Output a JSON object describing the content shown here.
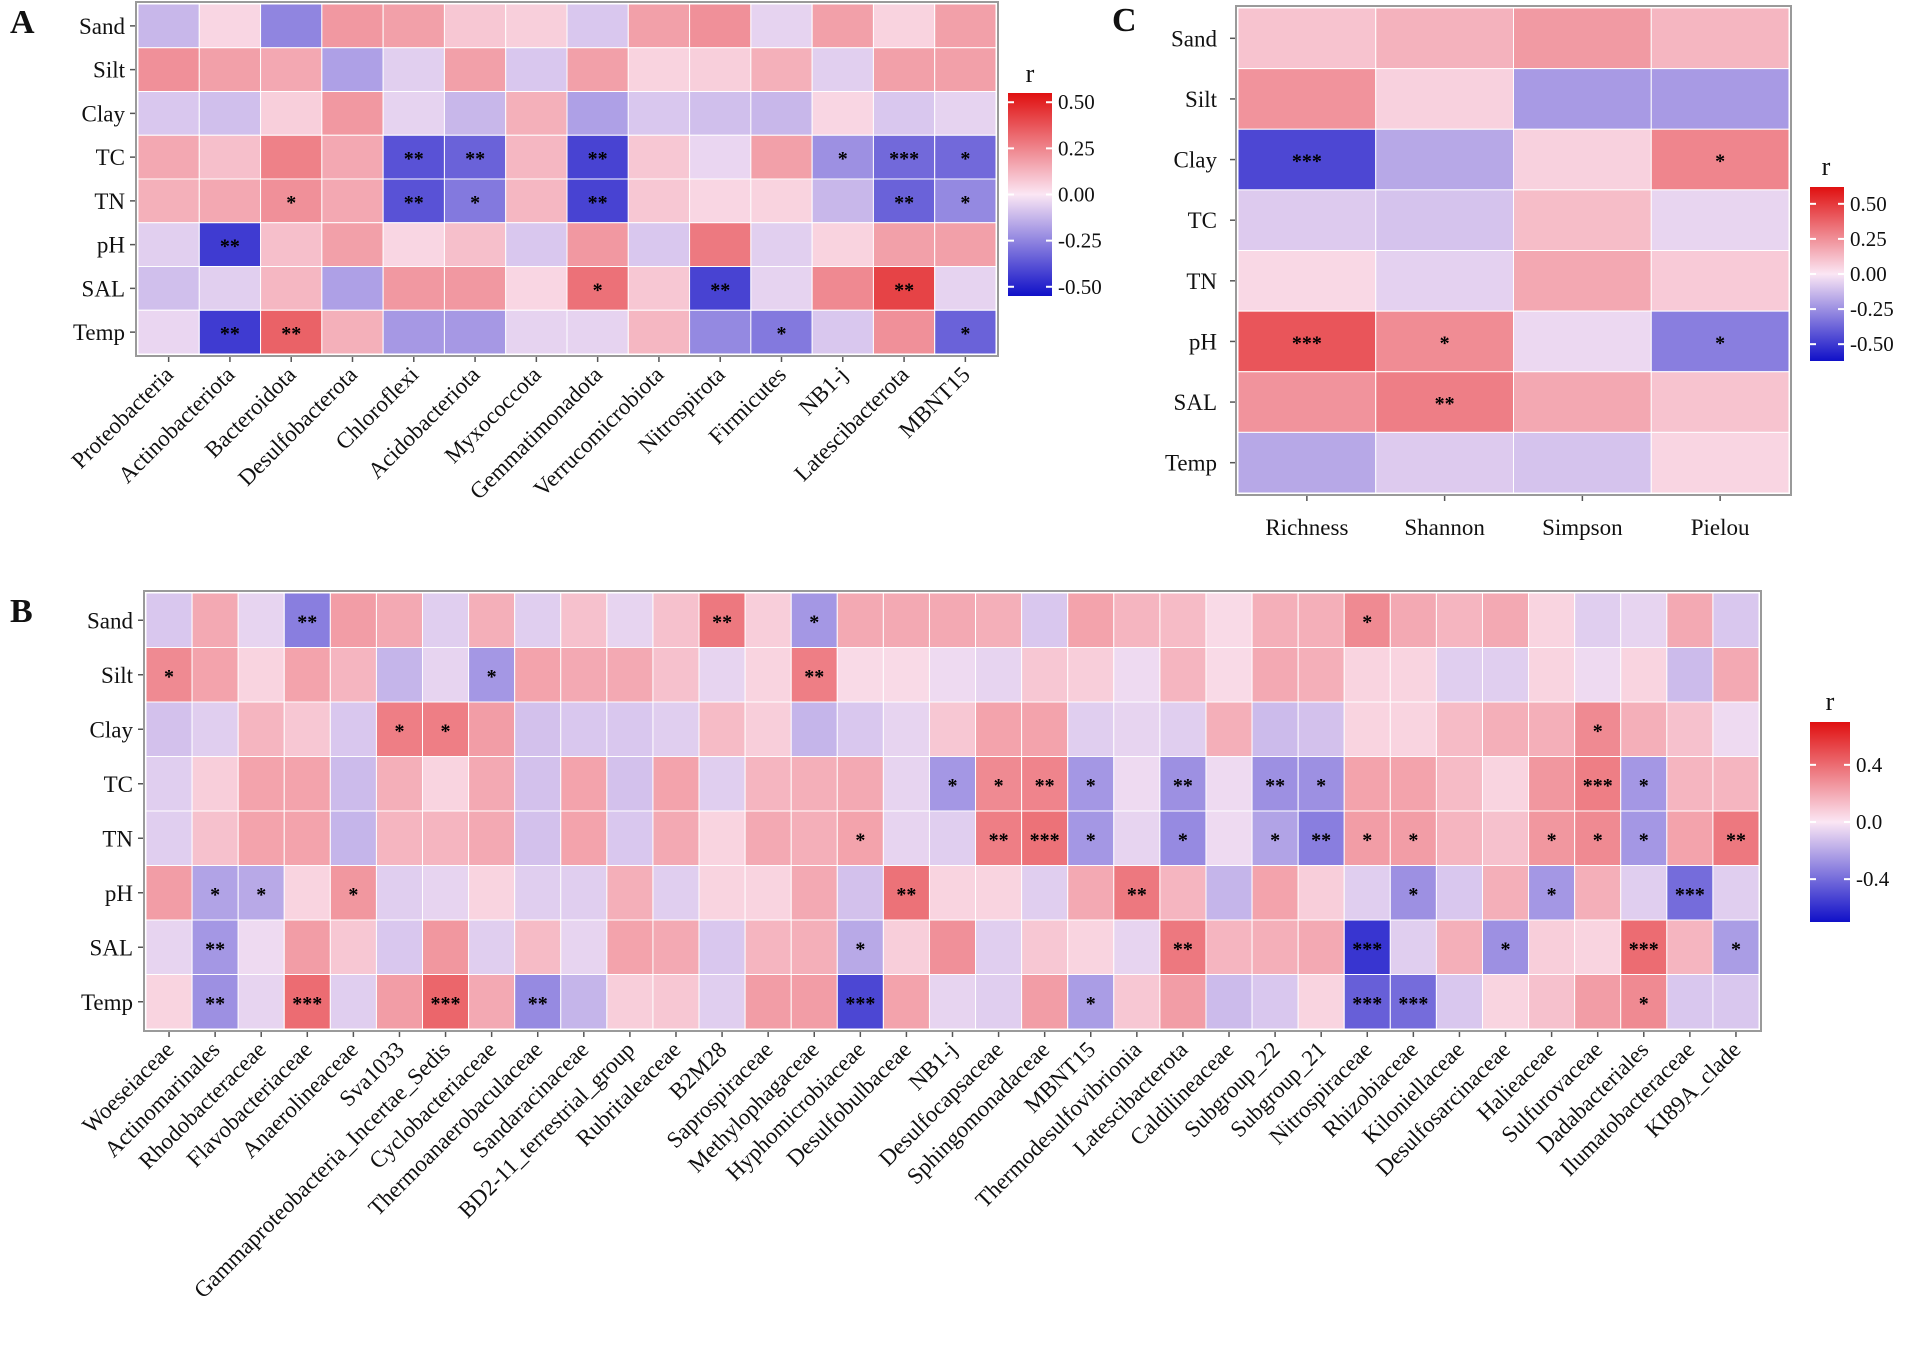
{
  "palette": {
    "low": "#1010c8",
    "mid": "#fbe6f4",
    "high": "#e01010",
    "border": "#9a9a9a"
  },
  "chart_data": [
    {
      "panel": "A",
      "type": "heatmap",
      "title": "",
      "legend_title": "r",
      "legend_ticks": [
        "0.50",
        "0.25",
        "0.00",
        "-0.25",
        "-0.50"
      ],
      "legend_tick_values": [
        0.5,
        0.25,
        0,
        -0.25,
        -0.5
      ],
      "color_range": [
        -0.55,
        0.55
      ],
      "rows": [
        "Sand",
        "Silt",
        "Clay",
        "TC",
        "TN",
        "pH",
        "SAL",
        "Temp"
      ],
      "columns": [
        "Proteobacteria",
        "Actinobacteriota",
        "Bacteroidota",
        "Desulfobacterota",
        "Chloroflexi",
        "Acidobacteriota",
        "Myxococcota",
        "Gemmatimonadota",
        "Verrucomicrobiota",
        "Nitrospirota",
        "Firmicutes",
        "NB1-j",
        "Latescibacterota",
        "MBNT15"
      ],
      "values": [
        [
          -0.12,
          0.04,
          -0.25,
          0.2,
          0.18,
          0.08,
          0.06,
          -0.08,
          0.18,
          0.22,
          -0.05,
          0.18,
          0.05,
          0.18
        ],
        [
          0.22,
          0.18,
          0.16,
          -0.18,
          -0.06,
          0.18,
          -0.08,
          0.18,
          0.05,
          0.06,
          0.14,
          -0.06,
          0.18,
          0.18
        ],
        [
          -0.08,
          -0.1,
          0.06,
          0.2,
          -0.05,
          -0.12,
          0.14,
          -0.18,
          -0.08,
          -0.1,
          -0.12,
          0.04,
          -0.08,
          -0.05
        ],
        [
          0.16,
          0.1,
          0.26,
          0.16,
          -0.38,
          -0.34,
          0.12,
          -0.42,
          0.08,
          -0.04,
          0.18,
          -0.22,
          -0.32,
          -0.32
        ],
        [
          0.14,
          0.16,
          0.22,
          0.16,
          -0.38,
          -0.28,
          0.12,
          -0.42,
          0.08,
          0.04,
          0.05,
          -0.12,
          -0.34,
          -0.24
        ],
        [
          -0.06,
          -0.44,
          0.1,
          0.18,
          0.04,
          0.1,
          -0.08,
          0.2,
          -0.08,
          0.28,
          -0.06,
          0.05,
          0.18,
          0.18
        ],
        [
          -0.1,
          -0.06,
          0.12,
          -0.18,
          0.2,
          0.2,
          0.04,
          0.3,
          0.08,
          -0.42,
          -0.05,
          0.24,
          0.42,
          -0.05
        ],
        [
          -0.04,
          -0.44,
          0.34,
          0.14,
          -0.2,
          -0.2,
          -0.05,
          -0.05,
          0.12,
          -0.24,
          -0.28,
          -0.08,
          0.22,
          -0.34
        ]
      ],
      "stars": [
        [
          "",
          "",
          "",
          "",
          "",
          "",
          "",
          "",
          "",
          "",
          "",
          "",
          "",
          ""
        ],
        [
          "",
          "",
          "",
          "",
          "",
          "",
          "",
          "",
          "",
          "",
          "",
          "",
          "",
          ""
        ],
        [
          "",
          "",
          "",
          "",
          "",
          "",
          "",
          "",
          "",
          "",
          "",
          "",
          "",
          ""
        ],
        [
          "",
          "",
          "",
          "",
          "**",
          "**",
          "",
          "**",
          "",
          "",
          "",
          "*",
          "***",
          "*"
        ],
        [
          "",
          "",
          "*",
          "",
          "**",
          "*",
          "",
          "**",
          "",
          "",
          "",
          "",
          "**",
          "*"
        ],
        [
          "",
          "**",
          "",
          "",
          "",
          "",
          "",
          "",
          "",
          "",
          "",
          "",
          "",
          ""
        ],
        [
          "",
          "",
          "",
          "",
          "",
          "",
          "",
          "*",
          "",
          "**",
          "",
          "",
          "**",
          ""
        ],
        [
          "",
          "**",
          "**",
          "",
          "",
          "",
          "",
          "",
          "",
          "",
          "*",
          "",
          "",
          "*"
        ]
      ]
    },
    {
      "panel": "C",
      "type": "heatmap",
      "title": "",
      "legend_title": "r",
      "legend_ticks": [
        "0.50",
        "0.25",
        "0.00",
        "-0.25",
        "-0.50"
      ],
      "legend_tick_values": [
        0.5,
        0.25,
        0,
        -0.25,
        -0.5
      ],
      "color_range": [
        -0.62,
        0.62
      ],
      "rows": [
        "Sand",
        "Silt",
        "Clay",
        "TC",
        "TN",
        "pH",
        "SAL",
        "Temp"
      ],
      "columns": [
        "Richness",
        "Shannon",
        "Simpson",
        "Pielou"
      ],
      "values": [
        [
          0.1,
          0.15,
          0.22,
          0.14
        ],
        [
          0.24,
          0.06,
          -0.22,
          -0.22
        ],
        [
          -0.46,
          -0.18,
          0.06,
          0.28
        ],
        [
          -0.08,
          -0.1,
          0.12,
          -0.05
        ],
        [
          0.04,
          -0.06,
          0.18,
          0.08
        ],
        [
          0.42,
          0.26,
          -0.04,
          -0.3
        ],
        [
          0.24,
          0.3,
          0.18,
          0.1
        ],
        [
          -0.18,
          -0.08,
          -0.1,
          0.05
        ]
      ],
      "stars": [
        [
          "",
          "",
          "",
          ""
        ],
        [
          "",
          "",
          "",
          ""
        ],
        [
          "***",
          "",
          "",
          "*"
        ],
        [
          "",
          "",
          "",
          ""
        ],
        [
          "",
          "",
          "",
          ""
        ],
        [
          "***",
          "*",
          "",
          "*"
        ],
        [
          "",
          "**",
          "",
          ""
        ],
        [
          "",
          "",
          "",
          ""
        ]
      ]
    },
    {
      "panel": "B",
      "type": "heatmap",
      "title": "",
      "legend_title": "r",
      "legend_ticks": [
        "0.4",
        "0.0",
        "-0.4"
      ],
      "legend_tick_values": [
        0.4,
        0.0,
        -0.4
      ],
      "color_range": [
        -0.7,
        0.7
      ],
      "rows": [
        "Sand",
        "Silt",
        "Clay",
        "TC",
        "TN",
        "pH",
        "SAL",
        "Temp"
      ],
      "columns": [
        "Woeseiaceae",
        "Actinomarinales",
        "Rhodobacteraceae",
        "Flavobacteriaceae",
        "Anaerolineaceae",
        "Sva1033",
        "Gammaproteobacteria_Incertae_Sedis",
        "Cyclobacteriaceae",
        "Thermoanaerobaculaceae",
        "Sandaracinaceae",
        "BD2-11_terrestrial_group",
        "Rubritaleaceae",
        "B2M28",
        "Saprospiraceae",
        "Methylophagaceae",
        "Hyphomicrobiaceae",
        "Desulfobulbaceae",
        "NB1-j",
        "Desulfocapsaceae",
        "Sphingomonadaceae",
        "MBNT15",
        "Thermodesulfovibrionia",
        "Latescibacterota",
        "Caldilineaceae",
        "Subgroup_22",
        "Subgroup_21",
        "Nitrospiraceae",
        "Rhizobiaceae",
        "Kiloniellaceae",
        "Desulfosarcinaceae",
        "Halieaceae",
        "Sulfurovaceae",
        "Dadabacteriales",
        "Ilumatobacteraceae",
        "KI89A_clade"
      ],
      "values": [
        [
          -0.1,
          0.2,
          -0.06,
          -0.34,
          0.24,
          0.2,
          -0.08,
          0.18,
          -0.08,
          0.12,
          -0.06,
          0.12,
          0.36,
          0.08,
          -0.26,
          0.2,
          0.2,
          0.2,
          0.18,
          -0.1,
          0.22,
          0.16,
          0.14,
          0.04,
          0.18,
          0.18,
          0.3,
          0.2,
          0.16,
          0.2,
          0.06,
          -0.08,
          -0.06,
          0.2,
          -0.1
        ],
        [
          0.3,
          0.22,
          0.06,
          0.22,
          0.16,
          -0.16,
          -0.06,
          -0.26,
          0.22,
          0.2,
          0.2,
          0.12,
          -0.06,
          0.06,
          0.34,
          0.04,
          0.04,
          -0.04,
          -0.06,
          0.1,
          0.08,
          -0.04,
          0.16,
          0.04,
          0.2,
          0.18,
          0.06,
          0.06,
          -0.08,
          -0.08,
          0.06,
          -0.04,
          0.06,
          -0.14,
          0.2
        ],
        [
          -0.12,
          -0.08,
          0.16,
          0.1,
          -0.1,
          0.34,
          0.34,
          0.24,
          -0.12,
          -0.1,
          -0.1,
          -0.08,
          0.14,
          0.08,
          -0.16,
          -0.1,
          -0.06,
          0.1,
          0.22,
          0.22,
          -0.08,
          -0.06,
          -0.08,
          0.18,
          -0.14,
          -0.12,
          0.06,
          0.06,
          0.14,
          0.18,
          0.18,
          0.3,
          0.18,
          0.12,
          -0.04
        ],
        [
          -0.08,
          0.08,
          0.22,
          0.22,
          -0.14,
          0.18,
          0.06,
          0.2,
          -0.12,
          0.22,
          -0.12,
          0.22,
          -0.08,
          0.16,
          0.18,
          0.2,
          -0.06,
          -0.26,
          0.3,
          0.32,
          -0.26,
          -0.04,
          -0.28,
          -0.04,
          -0.28,
          -0.28,
          0.22,
          0.22,
          0.14,
          0.06,
          0.26,
          0.34,
          -0.26,
          0.16,
          0.16
        ],
        [
          -0.08,
          0.12,
          0.22,
          0.22,
          -0.16,
          0.16,
          0.16,
          0.2,
          -0.12,
          0.22,
          -0.1,
          0.2,
          0.06,
          0.2,
          0.18,
          0.22,
          -0.06,
          -0.08,
          0.34,
          0.38,
          -0.26,
          -0.06,
          -0.3,
          -0.04,
          -0.22,
          -0.34,
          0.24,
          0.24,
          0.16,
          0.12,
          0.26,
          0.3,
          -0.26,
          0.22,
          0.36
        ],
        [
          0.24,
          -0.22,
          -0.2,
          0.06,
          0.26,
          -0.08,
          -0.06,
          0.06,
          -0.08,
          -0.08,
          0.18,
          -0.08,
          0.06,
          0.06,
          0.2,
          -0.12,
          0.38,
          0.06,
          0.06,
          -0.08,
          0.2,
          0.36,
          0.16,
          -0.16,
          0.22,
          0.08,
          -0.08,
          -0.28,
          -0.1,
          0.18,
          -0.26,
          0.18,
          -0.08,
          -0.4,
          -0.08
        ],
        [
          -0.06,
          -0.26,
          -0.04,
          0.24,
          0.1,
          -0.1,
          0.26,
          -0.08,
          0.14,
          -0.06,
          0.22,
          0.2,
          -0.1,
          0.16,
          0.18,
          -0.2,
          0.08,
          0.28,
          -0.08,
          0.1,
          0.06,
          -0.06,
          0.36,
          0.16,
          0.18,
          0.2,
          -0.58,
          -0.08,
          0.18,
          -0.28,
          0.08,
          0.06,
          0.4,
          0.16,
          -0.24
        ],
        [
          0.06,
          -0.28,
          -0.06,
          0.4,
          -0.08,
          0.24,
          0.42,
          0.2,
          -0.3,
          -0.16,
          0.08,
          0.1,
          -0.08,
          0.24,
          0.24,
          -0.52,
          0.22,
          -0.06,
          -0.08,
          0.24,
          -0.24,
          0.1,
          0.24,
          -0.14,
          -0.1,
          0.06,
          -0.44,
          -0.4,
          -0.1,
          0.06,
          0.12,
          0.24,
          0.3,
          -0.1,
          -0.1
        ]
      ],
      "stars": [
        [
          "",
          "",
          "",
          "**",
          "",
          "",
          "",
          "",
          "",
          "",
          "",
          "",
          "**",
          "",
          "*",
          "",
          "",
          "",
          "",
          "",
          "",
          "",
          "",
          "",
          "",
          "",
          "*",
          "",
          "",
          "",
          "",
          "",
          "",
          "",
          ""
        ],
        [
          "*",
          "",
          "",
          "",
          "",
          "",
          "",
          "*",
          "",
          "",
          "",
          "",
          "",
          "",
          "**",
          "",
          "",
          "",
          "",
          "",
          "",
          "",
          "",
          "",
          "",
          "",
          "",
          "",
          "",
          "",
          "",
          "",
          "",
          "",
          ""
        ],
        [
          "",
          "",
          "",
          "",
          "",
          "*",
          "*",
          "",
          "",
          "",
          "",
          "",
          "",
          "",
          "",
          "",
          "",
          "",
          "",
          "",
          "",
          "",
          "",
          "",
          "",
          "",
          "",
          "",
          "",
          "",
          "",
          "*",
          "",
          "",
          ""
        ],
        [
          "",
          "",
          "",
          "",
          "",
          "",
          "",
          "",
          "",
          "",
          "",
          "",
          "",
          "",
          "",
          "",
          "",
          "*",
          "*",
          "**",
          "*",
          "",
          "**",
          "",
          "**",
          "*",
          "",
          "",
          "",
          "",
          "",
          "***",
          "*",
          "",
          ""
        ],
        [
          "",
          "",
          "",
          "",
          "",
          "",
          "",
          "",
          "",
          "",
          "",
          "",
          "",
          "",
          "",
          "*",
          "",
          "",
          "**",
          "***",
          "*",
          "",
          "*",
          "",
          "*",
          "**",
          "*",
          "*",
          "",
          "",
          "*",
          "*",
          "*",
          "",
          "**"
        ],
        [
          "",
          "*",
          "*",
          "",
          "*",
          "",
          "",
          "",
          "",
          "",
          "",
          "",
          "",
          "",
          "",
          "",
          "**",
          "",
          "",
          "",
          "",
          "**",
          "",
          "",
          "",
          "",
          "",
          "*",
          "",
          "",
          "*",
          "",
          "",
          "***",
          ""
        ],
        [
          "",
          "**",
          "",
          "",
          "",
          "",
          "",
          "",
          "",
          "",
          "",
          "",
          "",
          "",
          "",
          "*",
          "",
          "",
          "",
          "",
          "",
          "",
          "**",
          "",
          "",
          "",
          "***",
          "",
          "",
          "*",
          "",
          "",
          "***",
          "",
          "*"
        ],
        [
          "",
          "**",
          "",
          "***",
          "",
          "",
          "***",
          "",
          "**",
          "",
          "",
          "",
          "",
          "",
          "",
          "***",
          "",
          "",
          "",
          "",
          "*",
          "",
          "",
          "",
          "",
          "",
          "***",
          "***",
          "",
          "",
          "",
          "",
          "*",
          "",
          ""
        ]
      ]
    }
  ]
}
